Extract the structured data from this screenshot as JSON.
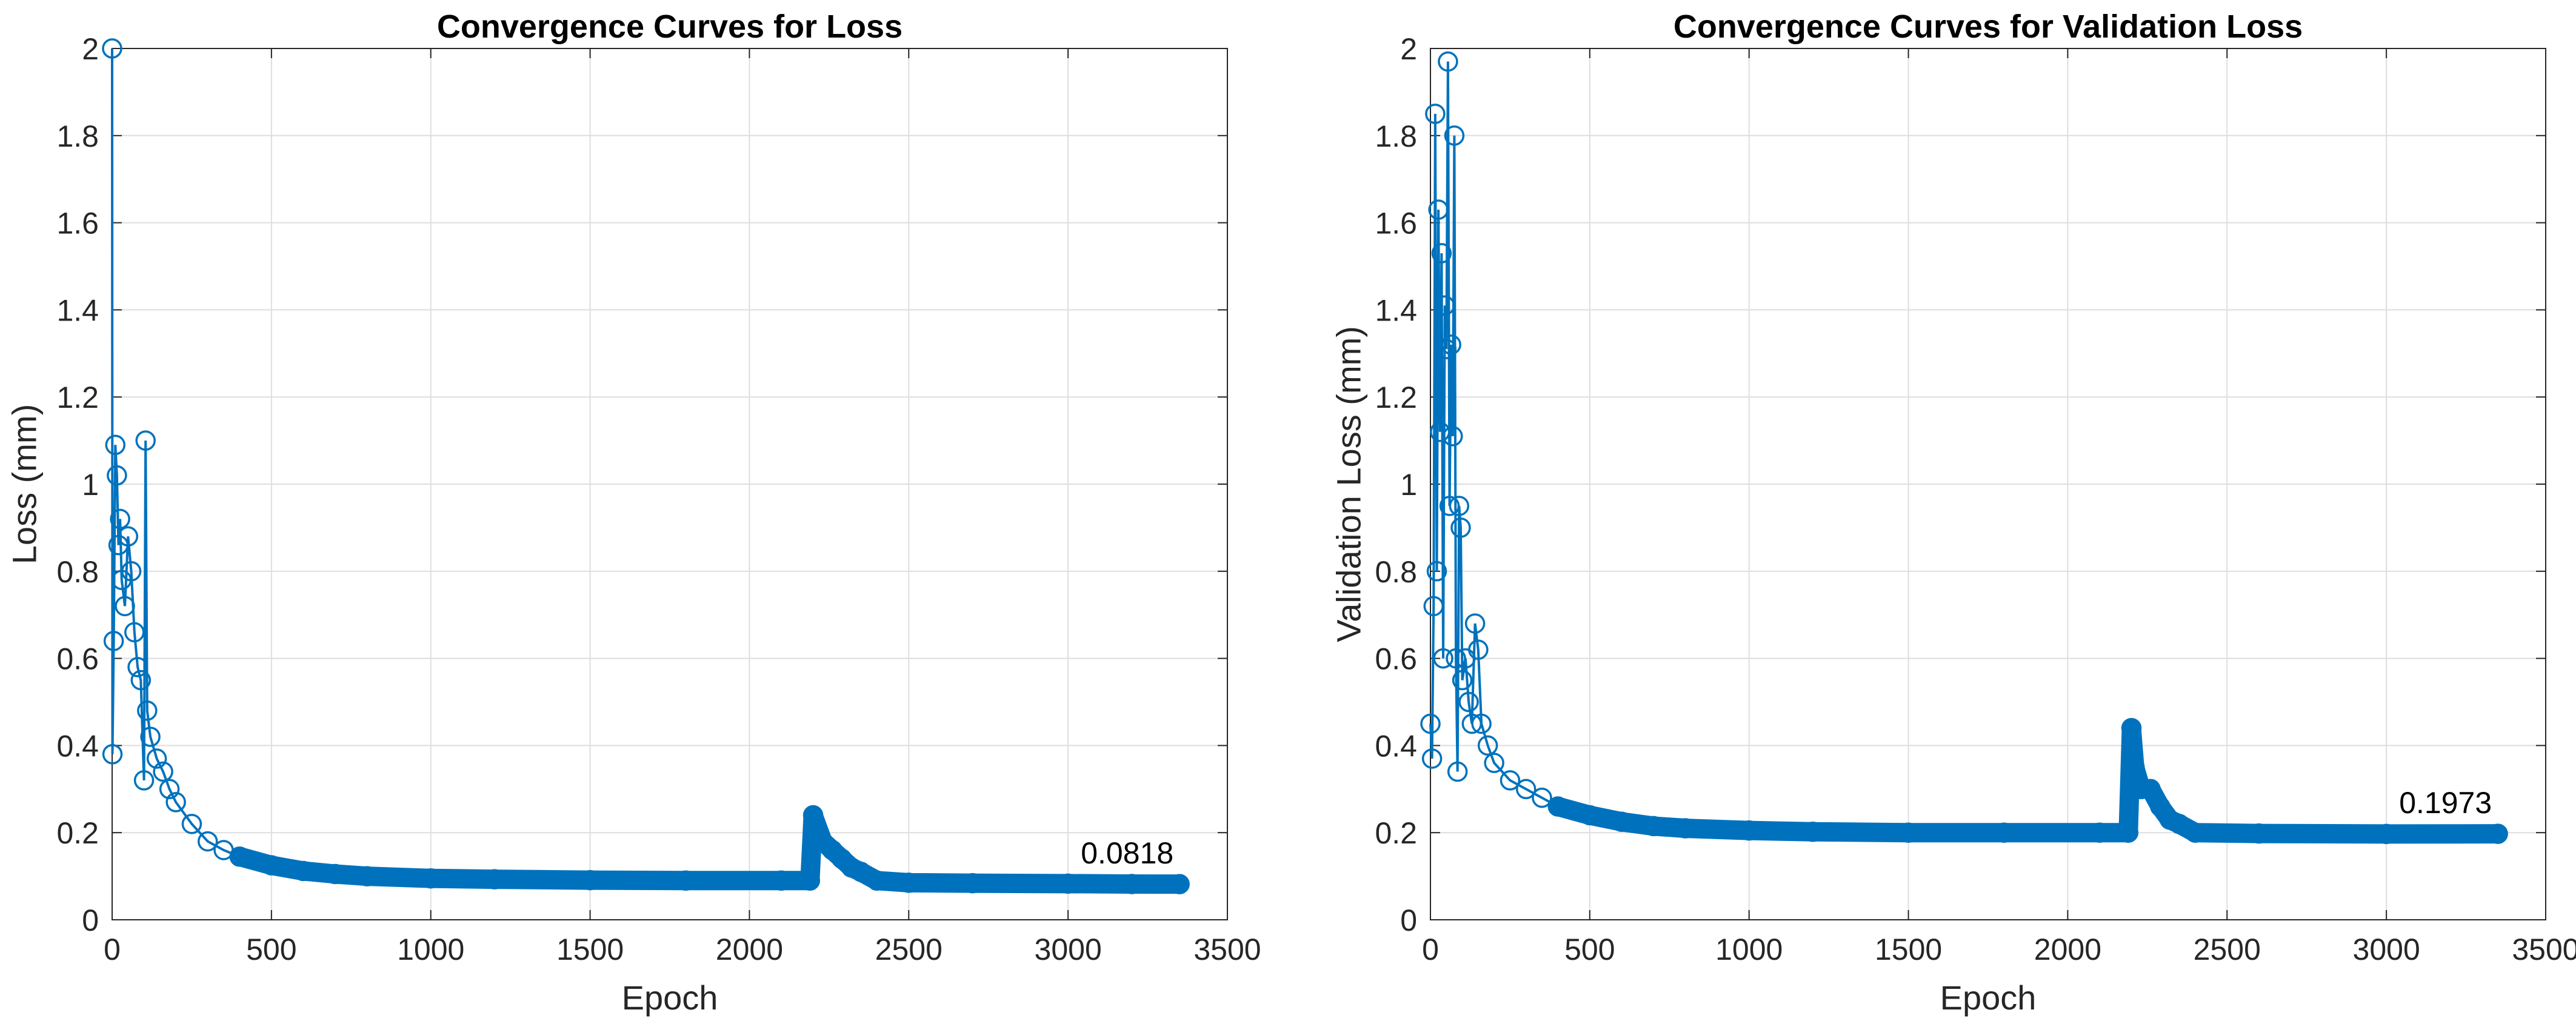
{
  "colors": {
    "series": "#0072BD",
    "grid": "#dedede",
    "axis": "#262626",
    "background": "#ffffff"
  },
  "chart_data": [
    {
      "type": "line",
      "marker": "circle",
      "title": "Convergence Curves for Loss",
      "xlabel": "Epoch",
      "ylabel": "Loss (mm)",
      "xlim": [
        0,
        3500
      ],
      "ylim": [
        0,
        2
      ],
      "xticks": [
        "0",
        "500",
        "1000",
        "1500",
        "2000",
        "2500",
        "3000",
        "3500"
      ],
      "yticks": [
        "0",
        "0.2",
        "0.4",
        "0.6",
        "0.8",
        "1",
        "1.2",
        "1.4",
        "1.6",
        "1.8",
        "2"
      ],
      "grid": true,
      "final_annotation": "0.0818",
      "series": [
        {
          "x": [
            0,
            1,
            5,
            10,
            15,
            20,
            25,
            30,
            40,
            50,
            60,
            70,
            80,
            90,
            100,
            105,
            110,
            120,
            140,
            160,
            180,
            200,
            250,
            300,
            350,
            400,
            500,
            600,
            700,
            800,
            1000,
            1200,
            1500,
            1800,
            2100,
            2190,
            2200,
            2230,
            2260,
            2290,
            2320,
            2350,
            2400,
            2500,
            2700,
            3000,
            3200,
            3350
          ],
          "y": [
            2.0,
            0.38,
            0.64,
            1.09,
            1.02,
            0.86,
            0.92,
            0.78,
            0.72,
            0.88,
            0.8,
            0.66,
            0.58,
            0.55,
            0.32,
            1.1,
            0.48,
            0.42,
            0.37,
            0.34,
            0.3,
            0.27,
            0.22,
            0.18,
            0.16,
            0.145,
            0.125,
            0.112,
            0.105,
            0.1,
            0.095,
            0.093,
            0.091,
            0.09,
            0.09,
            0.09,
            0.24,
            0.18,
            0.16,
            0.14,
            0.12,
            0.11,
            0.09,
            0.085,
            0.084,
            0.083,
            0.082,
            0.0818
          ]
        }
      ]
    },
    {
      "type": "line",
      "marker": "circle",
      "title": "Convergence Curves for Validation Loss",
      "xlabel": "Epoch",
      "ylabel": "Validation Loss (mm)",
      "xlim": [
        0,
        3500
      ],
      "ylim": [
        0,
        2
      ],
      "xticks": [
        "0",
        "500",
        "1000",
        "1500",
        "2000",
        "2500",
        "3000",
        "3500"
      ],
      "yticks": [
        "0",
        "0.2",
        "0.4",
        "0.6",
        "0.8",
        "1",
        "1.2",
        "1.4",
        "1.6",
        "1.8",
        "2"
      ],
      "grid": true,
      "final_annotation": "0.1973",
      "series": [
        {
          "x": [
            0,
            5,
            10,
            15,
            20,
            25,
            30,
            35,
            40,
            45,
            50,
            55,
            60,
            65,
            70,
            75,
            80,
            85,
            90,
            95,
            100,
            110,
            120,
            130,
            140,
            150,
            160,
            180,
            200,
            250,
            300,
            350,
            400,
            500,
            600,
            700,
            800,
            1000,
            1200,
            1500,
            1800,
            2100,
            2190,
            2200,
            2210,
            2230,
            2260,
            2290,
            2320,
            2350,
            2400,
            2600,
            3000,
            3350
          ],
          "y": [
            0.45,
            0.37,
            0.72,
            1.85,
            0.8,
            1.63,
            1.12,
            1.53,
            0.6,
            1.41,
            1.31,
            1.97,
            0.95,
            1.32,
            1.11,
            1.8,
            0.6,
            0.34,
            0.95,
            0.9,
            0.55,
            0.6,
            0.5,
            0.45,
            0.68,
            0.62,
            0.45,
            0.4,
            0.36,
            0.32,
            0.3,
            0.28,
            0.26,
            0.24,
            0.225,
            0.215,
            0.21,
            0.205,
            0.202,
            0.2,
            0.2,
            0.2,
            0.2,
            0.44,
            0.35,
            0.3,
            0.3,
            0.26,
            0.23,
            0.22,
            0.2,
            0.198,
            0.197,
            0.1973
          ]
        }
      ]
    }
  ]
}
